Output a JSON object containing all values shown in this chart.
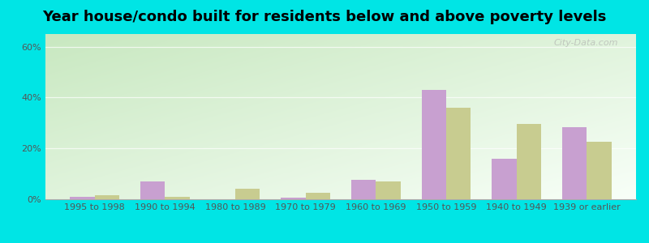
{
  "title": "Year house/condo built for residents below and above poverty levels",
  "categories": [
    "1995 to 1998",
    "1990 to 1994",
    "1980 to 1989",
    "1970 to 1979",
    "1960 to 1969",
    "1950 to 1959",
    "1940 to 1949",
    "1939 or earlier"
  ],
  "below_poverty": [
    1.0,
    7.0,
    0.0,
    0.5,
    7.5,
    43.0,
    16.0,
    28.5
  ],
  "above_poverty": [
    1.5,
    1.0,
    4.0,
    2.5,
    7.0,
    36.0,
    29.5,
    22.5
  ],
  "below_color": "#c8a0d0",
  "above_color": "#c8cc90",
  "ylim": [
    0,
    65
  ],
  "yticks": [
    0,
    20,
    40,
    60
  ],
  "ytick_labels": [
    "0%",
    "20%",
    "40%",
    "60%"
  ],
  "grad_top_left": "#c8e8c0",
  "grad_bottom_right": "#f0faf0",
  "outer_bg": "#00e5e5",
  "bar_width": 0.35,
  "title_fontsize": 13,
  "legend_fontsize": 10,
  "tick_fontsize": 8,
  "watermark": "City-Data.com"
}
